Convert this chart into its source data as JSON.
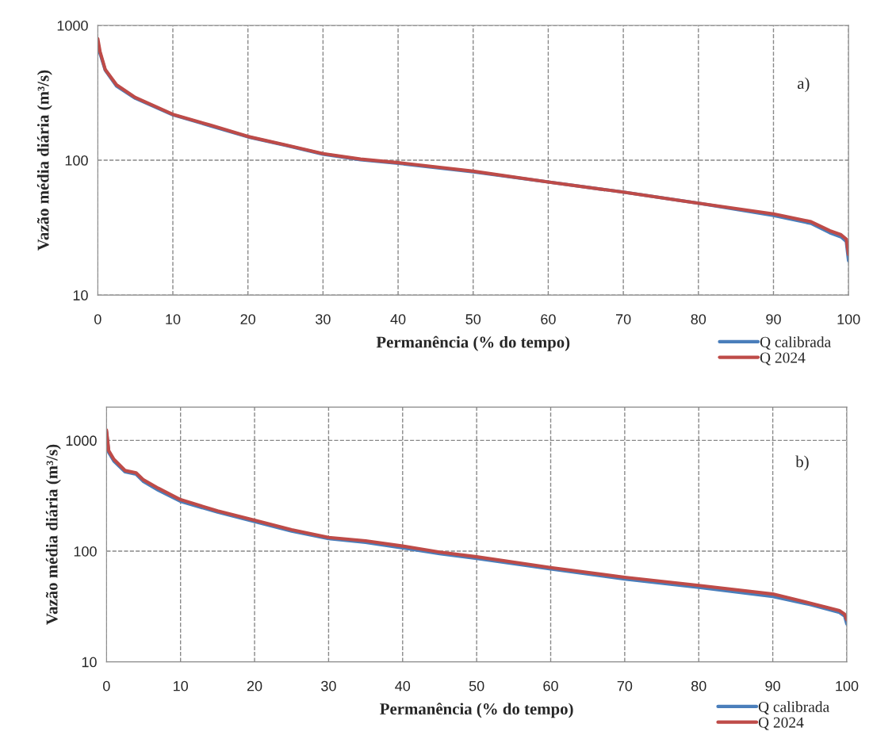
{
  "chart_data": [
    {
      "type": "line",
      "xlabel": "Permanência (% do tempo)",
      "ylabel": "Vazão média diária (m³/s)",
      "annotations": [
        "a)"
      ],
      "log": "y",
      "xlim": [
        0,
        100
      ],
      "xticks": [
        0,
        10,
        20,
        30,
        40,
        50,
        60,
        70,
        80,
        90,
        100
      ],
      "ylim": [
        10,
        1000
      ],
      "yticks": [
        10,
        100,
        1000
      ],
      "grid": true,
      "legend": "bottom right",
      "series": [
        {
          "name": "Q calibrada",
          "color": "#4a7ebb",
          "x": [
            0,
            0.3,
            1,
            2.5,
            5,
            10,
            15,
            20,
            25,
            30,
            35,
            40,
            50,
            60,
            70,
            80,
            90,
            95,
            97.5,
            99,
            99.7,
            100
          ],
          "values": [
            700,
            620,
            465,
            355,
            288,
            217,
            180,
            149,
            129,
            111,
            101,
            95,
            82,
            69,
            58,
            48,
            39,
            34,
            29,
            27,
            25,
            18
          ]
        },
        {
          "name": "Q 2024",
          "color": "#be4b48",
          "x": [
            0,
            0.3,
            1,
            2.5,
            5,
            10,
            15,
            20,
            25,
            30,
            35,
            40,
            50,
            60,
            70,
            80,
            90,
            95,
            97.5,
            99,
            99.7,
            100
          ],
          "values": [
            795,
            640,
            470,
            362,
            292,
            219,
            182,
            150,
            130,
            112,
            102,
            96,
            83,
            69,
            58,
            48,
            40,
            35,
            30,
            28,
            26,
            20
          ]
        }
      ]
    },
    {
      "type": "line",
      "xlabel": "Permanência (% do tempo)",
      "ylabel": "Vazão média diária (m³/s)",
      "annotations": [
        "b)"
      ],
      "log": "y",
      "xlim": [
        0,
        100
      ],
      "xticks": [
        0,
        10,
        20,
        30,
        40,
        50,
        60,
        70,
        80,
        90,
        100
      ],
      "ylim": [
        10,
        2000
      ],
      "yticks": [
        10,
        100,
        1000
      ],
      "grid": true,
      "legend": "bottom right",
      "series": [
        {
          "name": "Q calibrada",
          "color": "#4a7ebb",
          "x": [
            0,
            0.3,
            1,
            2.5,
            4,
            5,
            7,
            10,
            15,
            20,
            25,
            30,
            35,
            40,
            45,
            50,
            60,
            70,
            80,
            90,
            95,
            99,
            99.7,
            100
          ],
          "values": [
            1200,
            780,
            650,
            520,
            495,
            425,
            355,
            282,
            225,
            185,
            152,
            130,
            120,
            107,
            95,
            86,
            69,
            56,
            47,
            39,
            33,
            28,
            26,
            22
          ]
        },
        {
          "name": "Q 2024",
          "color": "#be4b48",
          "x": [
            0,
            0.3,
            1,
            2.5,
            4,
            5,
            7,
            10,
            15,
            20,
            25,
            30,
            35,
            40,
            45,
            50,
            60,
            70,
            80,
            90,
            95,
            99,
            99.7,
            100
          ],
          "values": [
            1240,
            810,
            675,
            535,
            510,
            440,
            370,
            292,
            231,
            190,
            156,
            133,
            124,
            111,
            98,
            89,
            71,
            58,
            49,
            41,
            34,
            29,
            27,
            24
          ]
        }
      ]
    }
  ]
}
